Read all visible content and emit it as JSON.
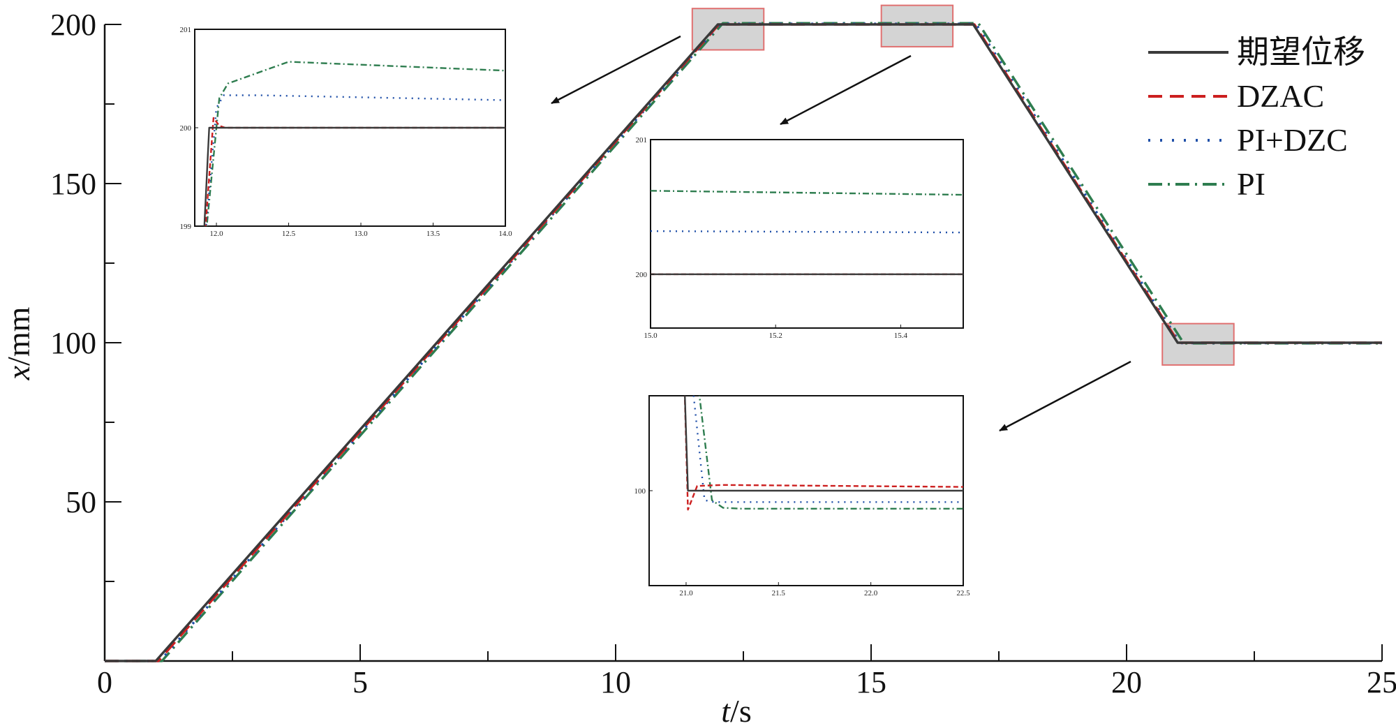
{
  "chart_data": {
    "type": "line",
    "xlabel_var": "t",
    "xlabel_unit": "/s",
    "ylabel_var": "x",
    "ylabel_unit": "/mm",
    "xlim": [
      0,
      25
    ],
    "ylim": [
      0,
      200
    ],
    "xticks": [
      0,
      5,
      10,
      15,
      20,
      25
    ],
    "yticks": [
      50,
      100,
      150,
      200
    ],
    "grid": false,
    "legend_position": "top-right",
    "series": [
      {
        "name": "期望位移",
        "color": "#3a3a3a",
        "dash": "solid",
        "x": [
          0,
          1,
          12,
          17,
          21,
          25
        ],
        "y": [
          0,
          0,
          200,
          200,
          100,
          100
        ]
      },
      {
        "name": "DZAC",
        "color": "#cc1f1f",
        "dash": "dash",
        "x": [
          0,
          1.05,
          12.02,
          17.02,
          21.02,
          25
        ],
        "y": [
          0,
          0,
          200,
          200,
          100,
          100
        ]
      },
      {
        "name": "PI+DZC",
        "color": "#1f4fa8",
        "dash": "dot",
        "x": [
          0,
          1.08,
          12.05,
          17.05,
          21.05,
          25
        ],
        "y": [
          0,
          0,
          200.2,
          200.2,
          99.9,
          99.9
        ]
      },
      {
        "name": "PI",
        "color": "#2e7d4f",
        "dash": "dashdot",
        "x": [
          0,
          1.12,
          12.1,
          17.1,
          21.12,
          25
        ],
        "y": [
          0,
          0,
          200.4,
          200.4,
          99.8,
          99.8
        ]
      }
    ],
    "highlight_regions": [
      {
        "x": [
          11.5,
          12.9
        ],
        "y": [
          192,
          205
        ]
      },
      {
        "x": [
          15.2,
          16.6
        ],
        "y": [
          193,
          206
        ]
      },
      {
        "x": [
          20.7,
          22.1
        ],
        "y": [
          93,
          106
        ]
      }
    ],
    "insets": [
      {
        "xlim": [
          11.85,
          14.0
        ],
        "ylim": [
          199,
          201
        ],
        "xticks": [
          "12.0",
          "12.5",
          "13.0",
          "13.5",
          "14.0"
        ],
        "yticks": [
          "199",
          "200",
          "201"
        ],
        "series": [
          {
            "name": "期望位移",
            "x": [
              11.9,
              11.95,
              14.0
            ],
            "y": [
              198.5,
              200.0,
              200.0
            ]
          },
          {
            "name": "DZAC",
            "x": [
              11.9,
              11.98,
              12.02,
              12.06,
              14.0
            ],
            "y": [
              198.5,
              200.1,
              200.02,
              200.0,
              200.0
            ]
          },
          {
            "name": "PI+DZC",
            "x": [
              11.9,
              12.0,
              12.05,
              12.3,
              14.0
            ],
            "y": [
              198.5,
              200.2,
              200.33,
              200.33,
              200.28
            ]
          },
          {
            "name": "PI",
            "x": [
              11.9,
              12.02,
              12.08,
              12.5,
              14.0
            ],
            "y": [
              198.5,
              200.3,
              200.45,
              200.67,
              200.58
            ]
          }
        ]
      },
      {
        "xlim": [
          15.0,
          15.5
        ],
        "ylim": [
          199.6,
          201
        ],
        "xticks": [
          "15.0",
          "15.2",
          "15.4"
        ],
        "yticks": [
          "200",
          "201"
        ],
        "series": [
          {
            "name": "期望位移",
            "x": [
              15.0,
              15.5
            ],
            "y": [
              200.0,
              200.0
            ]
          },
          {
            "name": "DZAC",
            "x": [
              15.0,
              15.5
            ],
            "y": [
              200.0,
              200.0
            ]
          },
          {
            "name": "PI+DZC",
            "x": [
              15.0,
              15.5
            ],
            "y": [
              200.32,
              200.31
            ]
          },
          {
            "name": "PI",
            "x": [
              15.0,
              15.5
            ],
            "y": [
              200.62,
              200.59
            ]
          }
        ]
      },
      {
        "xlim": [
          20.8,
          22.5
        ],
        "ylim": [
          99.0,
          101.0
        ],
        "xticks": [
          "21.0",
          "21.5",
          "22.0",
          "22.5"
        ],
        "yticks": [
          "100"
        ],
        "series": [
          {
            "name": "期望位移",
            "x": [
              20.99,
              21.01,
              22.5
            ],
            "y": [
              101.2,
              100.0,
              100.0
            ]
          },
          {
            "name": "DZAC",
            "x": [
              20.99,
              21.01,
              21.06,
              21.2,
              22.5
            ],
            "y": [
              101.2,
              99.8,
              100.05,
              100.06,
              100.04
            ]
          },
          {
            "name": "PI+DZC",
            "x": [
              21.03,
              21.1,
              21.15,
              22.5
            ],
            "y": [
              101.2,
              99.9,
              99.88,
              99.88
            ]
          },
          {
            "name": "PI",
            "x": [
              21.06,
              21.14,
              21.2,
              21.3,
              22.5
            ],
            "y": [
              101.2,
              99.9,
              99.82,
              99.81,
              99.81
            ]
          }
        ]
      }
    ]
  }
}
